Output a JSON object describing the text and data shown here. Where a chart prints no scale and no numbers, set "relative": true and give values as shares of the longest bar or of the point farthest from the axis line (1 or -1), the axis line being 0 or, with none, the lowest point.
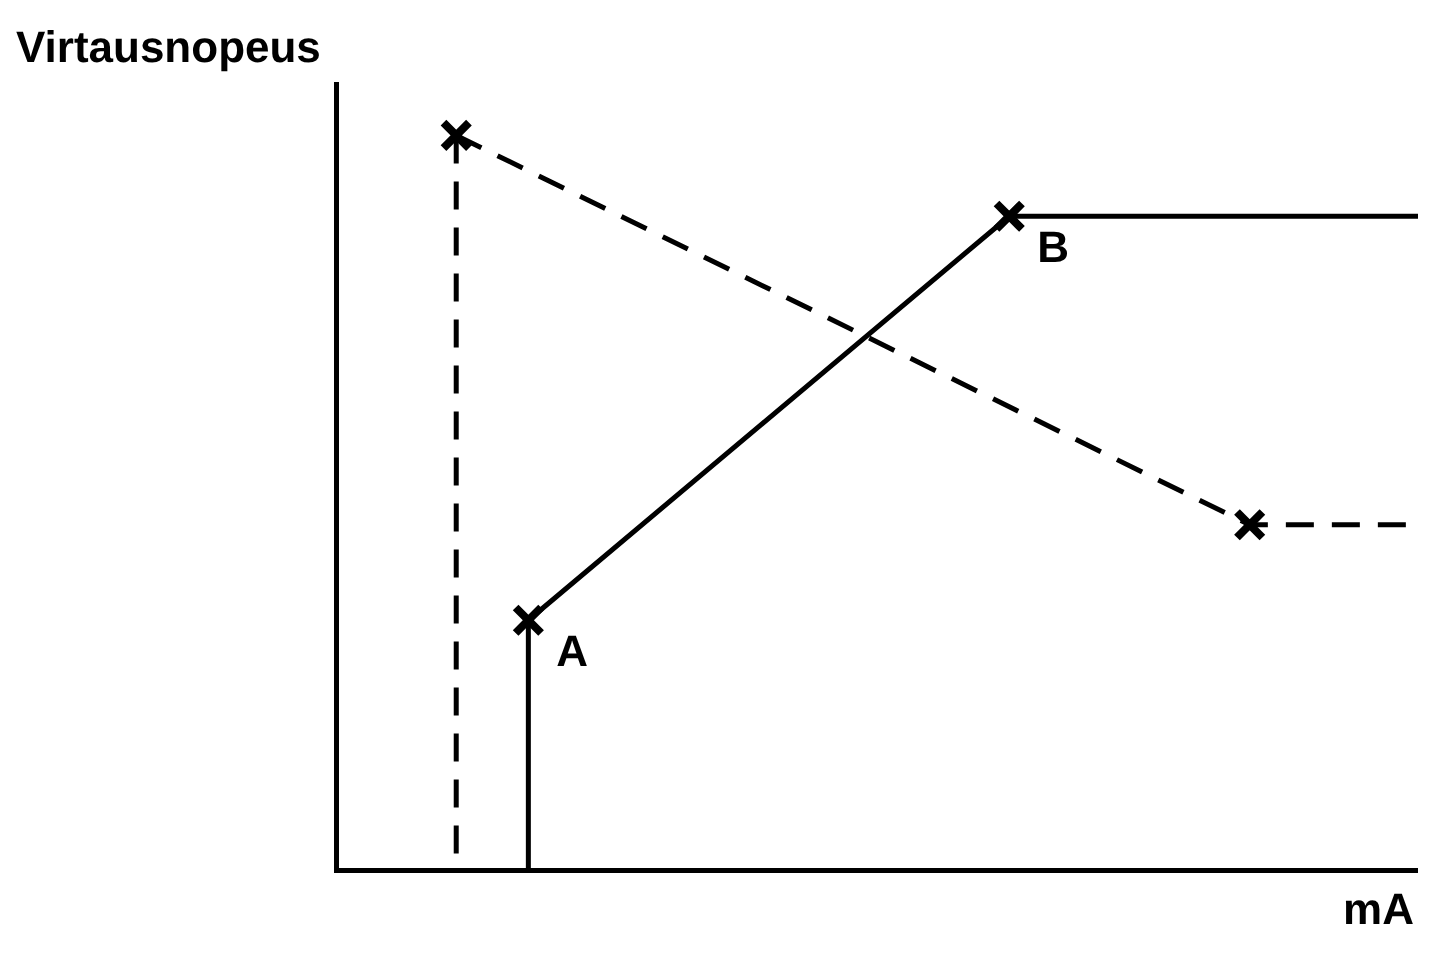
{
  "chart_data": {
    "type": "line",
    "relative": true,
    "ylabel": "Virtausnopeus",
    "xlabel": "mA",
    "marker": "cross",
    "grid": false,
    "legend": false,
    "categories": [
      null,
      null,
      null,
      null,
      null,
      null,
      null,
      null,
      null,
      null,
      null,
      null,
      null,
      null,
      null,
      null,
      null,
      null,
      null,
      null,
      null,
      null,
      null,
      null,
      null,
      null,
      null,
      null,
      null,
      null,
      null,
      null,
      null,
      null,
      null,
      null,
      null,
      null,
      null,
      null,
      null,
      null,
      null,
      null,
      null,
      null
    ],
    "series": [
      {
        "color": "#000000",
        "line_style": "solid",
        "values": [
          null,
          null,
          null,
          null,
          null,
          null,
          null,
          null,
          0.34,
          null,
          null,
          null,
          null,
          null,
          null,
          null,
          null,
          null,
          null,
          null,
          null,
          null,
          null,
          null,
          null,
          null,
          null,
          null,
          0.89,
          null,
          null,
          null,
          null,
          null,
          null,
          null,
          null,
          null,
          null,
          null,
          null,
          null,
          null,
          null,
          null,
          0.89
        ]
      },
      {
        "color": "#000000",
        "line_style": "dashed",
        "values": [
          null,
          null,
          null,
          null,
          null,
          1,
          null,
          null,
          null,
          null,
          null,
          null,
          null,
          null,
          null,
          null,
          null,
          null,
          null,
          null,
          null,
          null,
          null,
          null,
          null,
          null,
          null,
          null,
          null,
          null,
          null,
          null,
          null,
          null,
          null,
          null,
          null,
          null,
          0.47,
          null,
          null,
          null,
          null,
          null,
          null,
          0.47
        ]
      }
    ],
    "annotations": [
      "A",
      "B"
    ]
  }
}
